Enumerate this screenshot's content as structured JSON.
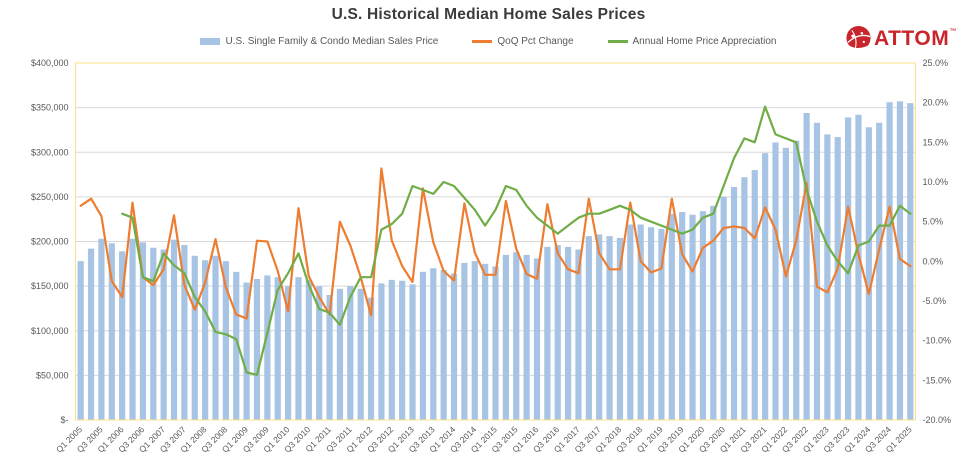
{
  "title": "U.S. Historical Median Home Sales Prices",
  "logo": {
    "text": "ATTOM",
    "tm": "™"
  },
  "legend": {
    "items": [
      {
        "label": "U.S. Single Family & Condo Median Sales Price",
        "marker": "bar",
        "color": "#A7C4E4"
      },
      {
        "label": "QoQ Pct Change",
        "marker": "line",
        "color": "#ED7D31"
      },
      {
        "label": "Annual Home Price Appreciation",
        "marker": "line",
        "color": "#70AD47"
      }
    ]
  },
  "colors": {
    "bar": "#A7C4E4",
    "qoq_line": "#ED7D31",
    "appreciation_line": "#70AD47",
    "title_text": "#3B3B3B",
    "axis_text": "#595959",
    "gridline": "#D9D9D9",
    "axis_line": "#BFBFBF",
    "plot_border": "#FFE08A",
    "logo_red": "#C9252C"
  },
  "chart_data": {
    "type": "bar",
    "subtype": "combo-bar-line",
    "x_tick_step": 2,
    "grid": "horizontal-only",
    "legend_position": "top",
    "categories": [
      "Q1 2005",
      "Q2 2005",
      "Q3 2005",
      "Q4 2005",
      "Q1 2006",
      "Q2 2006",
      "Q3 2006",
      "Q4 2006",
      "Q1 2007",
      "Q2 2007",
      "Q3 2007",
      "Q4 2007",
      "Q1 2008",
      "Q2 2008",
      "Q3 2008",
      "Q4 2008",
      "Q1 2009",
      "Q2 2009",
      "Q3 2009",
      "Q4 2009",
      "Q1 2010",
      "Q2 2010",
      "Q3 2010",
      "Q4 2010",
      "Q1 2011",
      "Q2 2011",
      "Q3 2011",
      "Q4 2011",
      "Q1 2012",
      "Q2 2012",
      "Q3 2012",
      "Q4 2012",
      "Q1 2013",
      "Q2 2013",
      "Q3 2013",
      "Q4 2013",
      "Q1 2014",
      "Q2 2014",
      "Q3 2014",
      "Q4 2014",
      "Q1 2015",
      "Q2 2015",
      "Q3 2015",
      "Q4 2015",
      "Q1 2016",
      "Q2 2016",
      "Q3 2016",
      "Q4 2016",
      "Q1 2017",
      "Q2 2017",
      "Q3 2017",
      "Q4 2017",
      "Q1 2018",
      "Q2 2018",
      "Q3 2018",
      "Q4 2018",
      "Q1 2019",
      "Q2 2019",
      "Q3 2019",
      "Q4 2019",
      "Q1 2020",
      "Q2 2020",
      "Q3 2020",
      "Q4 2020",
      "Q1 2021",
      "Q2 2021",
      "Q3 2021",
      "Q4 2021",
      "Q1 2022",
      "Q2 2022",
      "Q3 2022",
      "Q4 2022",
      "Q1 2023",
      "Q2 2023",
      "Q3 2023",
      "Q4 2023",
      "Q1 2024",
      "Q2 2024",
      "Q3 2024",
      "Q4 2024",
      "Q1 2025"
    ],
    "series": [
      {
        "name": "U.S. Single Family & Condo Median Sales Price",
        "type": "bar",
        "axis": "left",
        "color": "#A7C4E4",
        "values": [
          178000,
          192000,
          203000,
          198000,
          189000,
          203000,
          199000,
          193000,
          191000,
          202000,
          196000,
          184000,
          179000,
          184000,
          178000,
          166000,
          154000,
          158000,
          162000,
          160000,
          150000,
          160000,
          157000,
          150000,
          140000,
          147000,
          150000,
          147000,
          137000,
          153000,
          157000,
          156000,
          152000,
          166000,
          170000,
          168000,
          164000,
          176000,
          178000,
          175000,
          172000,
          185000,
          188000,
          185000,
          181000,
          194000,
          196000,
          194000,
          191000,
          206000,
          208000,
          206000,
          204000,
          219000,
          219000,
          216000,
          214000,
          231000,
          233000,
          230000,
          234000,
          240000,
          250000,
          261000,
          272000,
          280000,
          299000,
          311000,
          305000,
          313000,
          344000,
          333000,
          320000,
          317000,
          339000,
          342000,
          328000,
          333000,
          356000,
          357000,
          355000
        ]
      },
      {
        "name": "QoQ Pct Change",
        "type": "line",
        "axis": "right",
        "color": "#ED7D31",
        "values": [
          7.0,
          7.9,
          5.7,
          -2.5,
          -4.5,
          7.4,
          -2.0,
          -3.0,
          -1.0,
          5.8,
          -3.0,
          -6.1,
          -2.7,
          2.8,
          -3.3,
          -6.7,
          -7.2,
          2.6,
          2.5,
          -1.2,
          -6.3,
          6.7,
          -1.9,
          -4.5,
          -6.7,
          5.0,
          2.0,
          -2.0,
          -6.8,
          11.7,
          2.6,
          -0.6,
          -2.6,
          9.2,
          2.4,
          -1.2,
          -2.4,
          7.3,
          1.1,
          -1.7,
          -1.7,
          7.6,
          1.6,
          -1.6,
          -2.2,
          7.2,
          1.0,
          -1.0,
          -1.5,
          7.9,
          1.0,
          -1.0,
          -1.0,
          7.4,
          0.0,
          -1.4,
          -0.9,
          7.9,
          0.9,
          -1.3,
          1.7,
          2.6,
          4.2,
          4.4,
          4.2,
          2.9,
          6.8,
          4.0,
          -1.9,
          2.6,
          9.9,
          -3.2,
          -3.9,
          -0.9,
          6.9,
          0.9,
          -4.1,
          1.5,
          6.9,
          0.3,
          -0.6
        ]
      },
      {
        "name": "Annual Home Price Appreciation",
        "type": "line",
        "axis": "right",
        "color": "#70AD47",
        "values": [
          null,
          null,
          null,
          null,
          6.0,
          5.5,
          -2.0,
          -2.5,
          1.0,
          -0.5,
          -1.5,
          -4.5,
          -6.3,
          -8.9,
          -9.2,
          -9.8,
          -14.0,
          -14.3,
          -9.0,
          -3.6,
          -1.5,
          1.0,
          -3.0,
          -6.0,
          -6.5,
          -8.0,
          -4.5,
          -2.0,
          -2.0,
          4.0,
          4.7,
          6.0,
          9.5,
          9.0,
          8.5,
          10.0,
          9.5,
          8.0,
          6.5,
          4.5,
          6.5,
          9.5,
          9.0,
          7.0,
          5.5,
          4.5,
          3.5,
          4.5,
          5.5,
          6.0,
          6.0,
          6.5,
          7.0,
          6.5,
          5.5,
          5.0,
          4.5,
          4.0,
          3.5,
          4.0,
          5.5,
          6.0,
          9.5,
          13.0,
          15.5,
          15.0,
          19.5,
          16.0,
          15.5,
          15.0,
          9.0,
          5.0,
          2.0,
          0.0,
          -1.5,
          2.0,
          2.5,
          4.5,
          4.5,
          7.0,
          6.0
        ]
      }
    ],
    "left_axis": {
      "min": 0,
      "max": 400000,
      "step": 50000,
      "labels": [
        "$400,000",
        "$350,000",
        "$300,000",
        "$250,000",
        "$200,000",
        "$150,000",
        "$100,000",
        "$50,000",
        "$-"
      ],
      "values": [
        400000,
        350000,
        300000,
        250000,
        200000,
        150000,
        100000,
        50000,
        0
      ]
    },
    "right_axis": {
      "min": -20,
      "max": 25,
      "step": 5,
      "labels": [
        "25.0%",
        "20.0%",
        "15.0%",
        "10.0%",
        "5.0%",
        "0.0%",
        "-5.0%",
        "-10.0%",
        "-15.0%",
        "-20.0%"
      ],
      "values": [
        25,
        20,
        15,
        10,
        5,
        0,
        -5,
        -10,
        -15,
        -20
      ]
    }
  }
}
